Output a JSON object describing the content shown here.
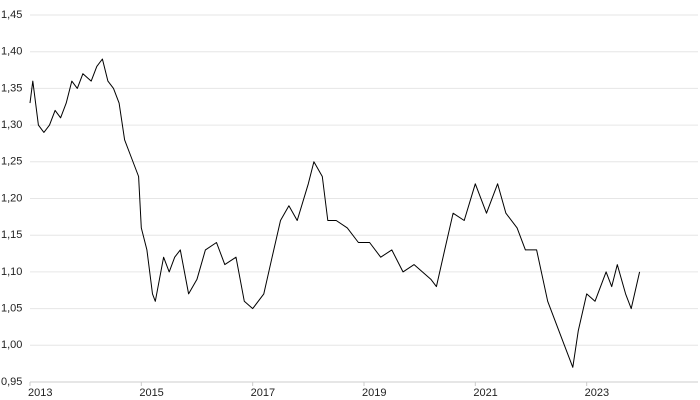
{
  "chart_data": {
    "type": "line",
    "x": [
      2013.0,
      2013.05,
      2013.15,
      2013.25,
      2013.35,
      2013.45,
      2013.55,
      2013.65,
      2013.75,
      2013.85,
      2013.95,
      2014.1,
      2014.2,
      2014.3,
      2014.4,
      2014.5,
      2014.6,
      2014.7,
      2014.8,
      2014.95,
      2015.0,
      2015.1,
      2015.2,
      2015.25,
      2015.4,
      2015.5,
      2015.6,
      2015.7,
      2015.85,
      2016.0,
      2016.15,
      2016.35,
      2016.5,
      2016.7,
      2016.85,
      2017.0,
      2017.2,
      2017.35,
      2017.5,
      2017.65,
      2017.8,
      2018.0,
      2018.1,
      2018.25,
      2018.35,
      2018.5,
      2018.7,
      2018.9,
      2019.1,
      2019.3,
      2019.5,
      2019.7,
      2019.9,
      2020.2,
      2020.3,
      2020.45,
      2020.6,
      2020.8,
      2021.0,
      2021.2,
      2021.4,
      2021.55,
      2021.75,
      2021.9,
      2022.1,
      2022.3,
      2022.5,
      2022.6,
      2022.75,
      2022.85,
      2023.0,
      2023.15,
      2023.35,
      2023.45,
      2023.55,
      2023.7,
      2023.8,
      2023.95
    ],
    "series": [
      {
        "color": "#000000",
        "values": [
          1.33,
          1.36,
          1.3,
          1.29,
          1.3,
          1.32,
          1.31,
          1.33,
          1.36,
          1.35,
          1.37,
          1.36,
          1.38,
          1.39,
          1.36,
          1.35,
          1.33,
          1.28,
          1.26,
          1.23,
          1.16,
          1.13,
          1.07,
          1.06,
          1.12,
          1.1,
          1.12,
          1.13,
          1.07,
          1.09,
          1.13,
          1.14,
          1.11,
          1.12,
          1.06,
          1.05,
          1.07,
          1.12,
          1.17,
          1.19,
          1.17,
          1.22,
          1.25,
          1.23,
          1.17,
          1.17,
          1.16,
          1.14,
          1.14,
          1.12,
          1.13,
          1.1,
          1.11,
          1.09,
          1.08,
          1.13,
          1.18,
          1.17,
          1.22,
          1.18,
          1.22,
          1.18,
          1.16,
          1.13,
          1.13,
          1.06,
          1.02,
          1.0,
          0.97,
          1.02,
          1.07,
          1.06,
          1.1,
          1.08,
          1.11,
          1.07,
          1.05,
          1.1
        ]
      }
    ],
    "xlim": [
      2013,
      2025
    ],
    "xticks": [
      2013,
      2015,
      2017,
      2019,
      2021,
      2023
    ],
    "ylim": [
      0.95,
      1.45
    ],
    "yticks": [
      {
        "value": 0.95,
        "label": "0,95"
      },
      {
        "value": 1.0,
        "label": "1,00"
      },
      {
        "value": 1.05,
        "label": "1,05"
      },
      {
        "value": 1.1,
        "label": "1,10"
      },
      {
        "value": 1.15,
        "label": "1,15"
      },
      {
        "value": 1.2,
        "label": "1,20"
      },
      {
        "value": 1.25,
        "label": "1,25"
      },
      {
        "value": 1.3,
        "label": "1,30"
      },
      {
        "value": 1.35,
        "label": "1,35"
      },
      {
        "value": 1.4,
        "label": "1,40"
      },
      {
        "value": 1.45,
        "label": "1,45"
      }
    ],
    "grid": true
  }
}
